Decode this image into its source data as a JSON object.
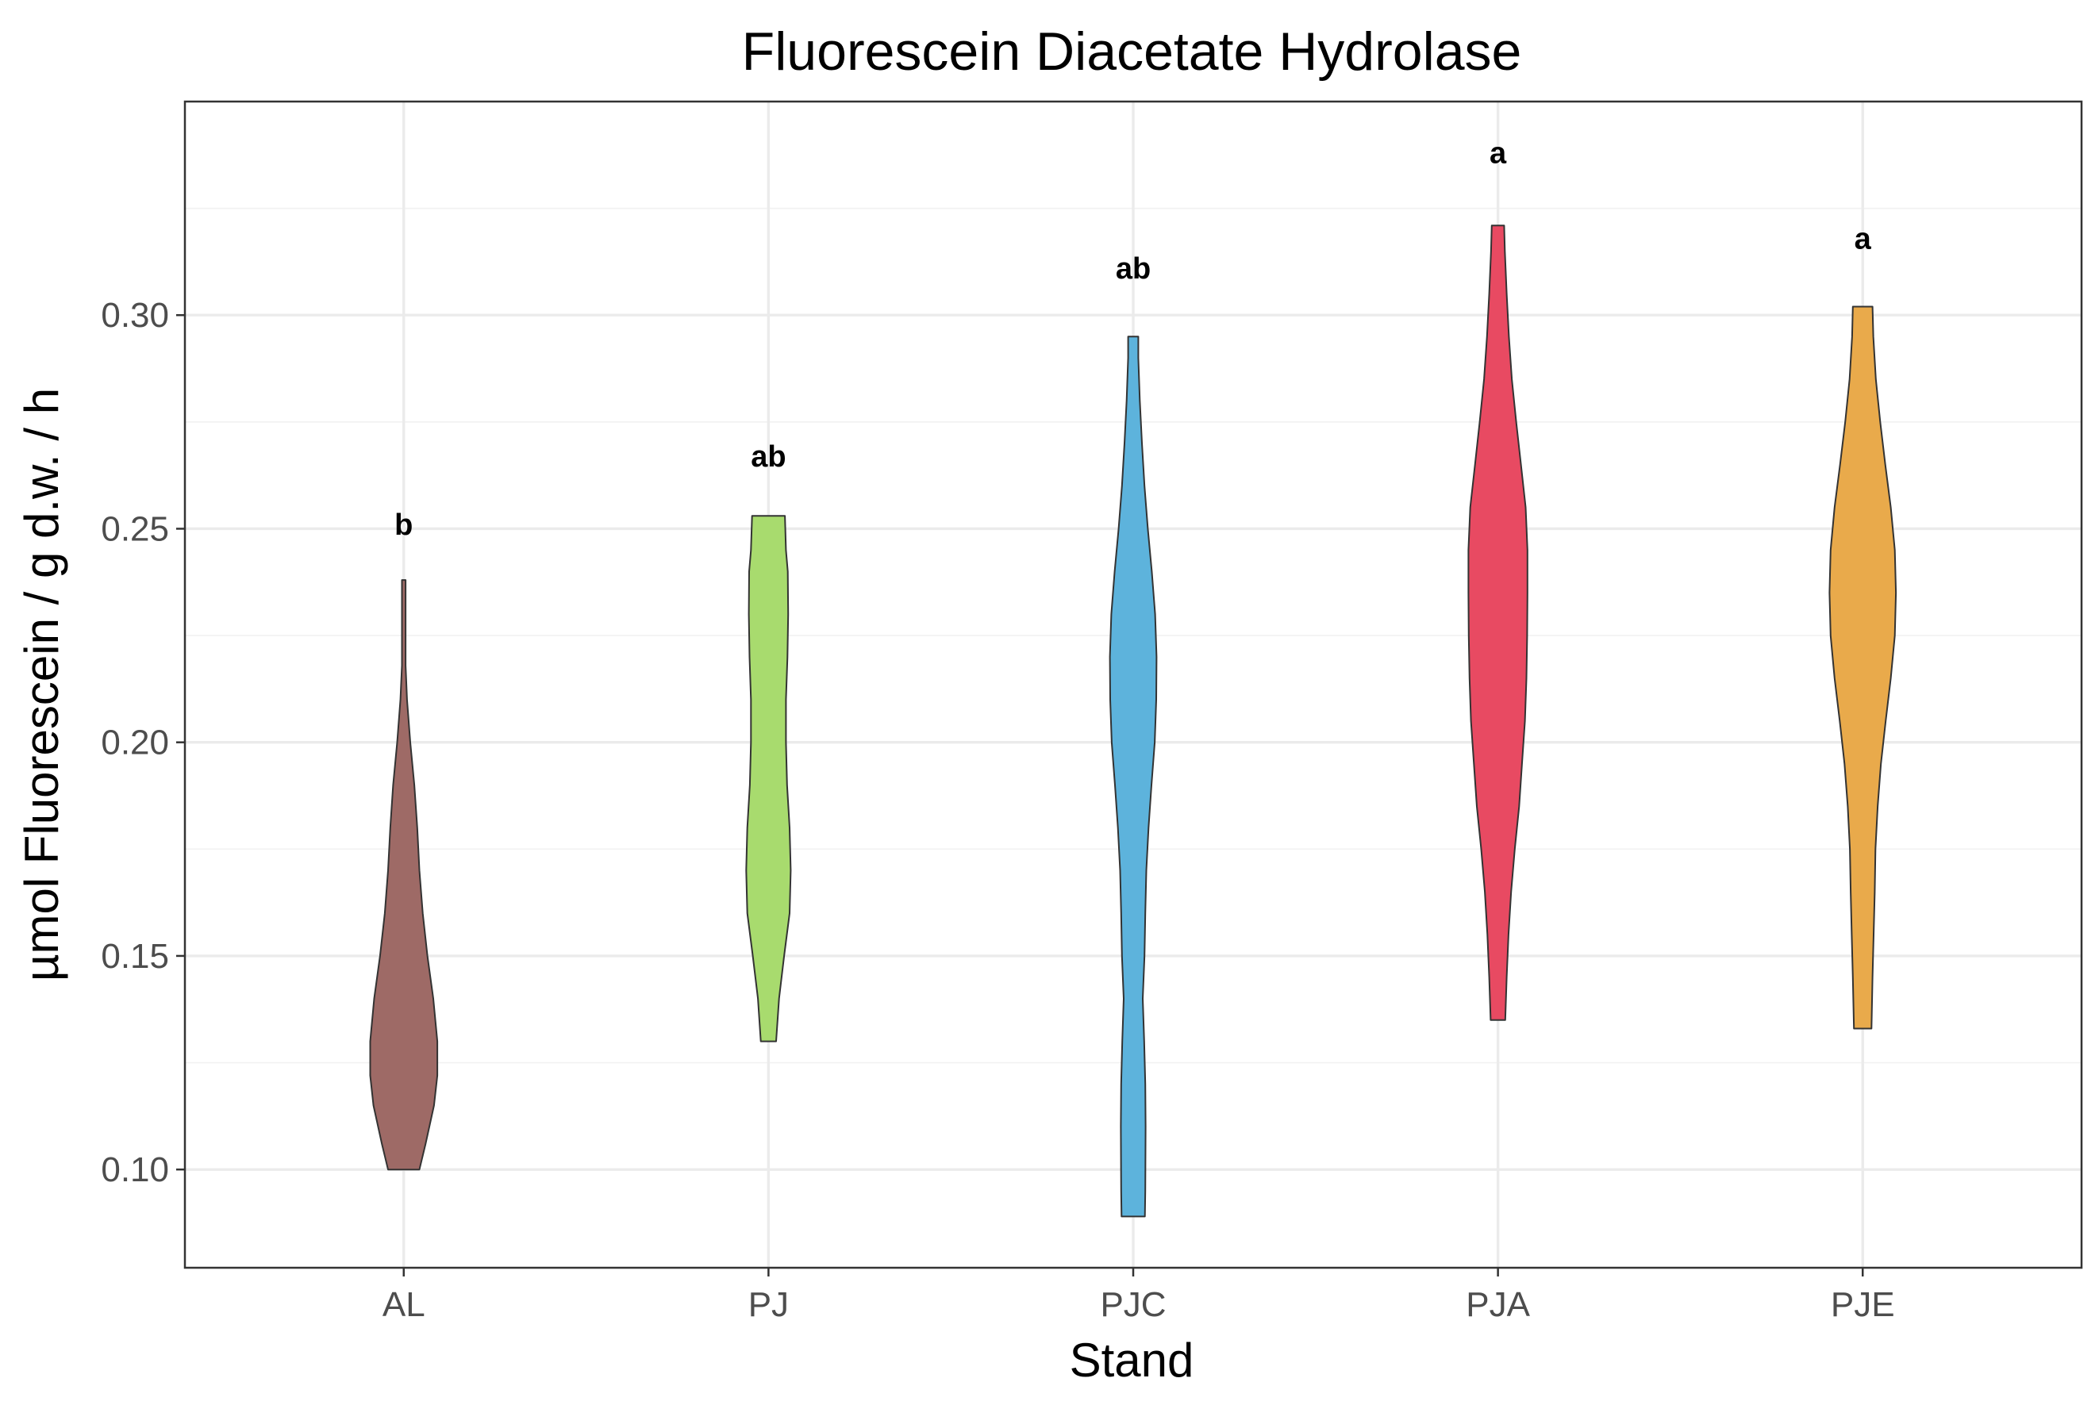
{
  "chart_data": {
    "type": "violin",
    "title": "Fluorescein Diacetate Hydrolase",
    "xlabel": "Stand",
    "ylabel": "µmol Fluorescein / g d.w. / h",
    "ylim": [
      0.077,
      0.35
    ],
    "y_ticks": [
      {
        "value": 0.1,
        "label": "0.10"
      },
      {
        "value": 0.15,
        "label": "0.15"
      },
      {
        "value": 0.2,
        "label": "0.20"
      },
      {
        "value": 0.25,
        "label": "0.25"
      },
      {
        "value": 0.3,
        "label": "0.30"
      }
    ],
    "y_minor_ticks": [
      0.125,
      0.175,
      0.225,
      0.275,
      0.325
    ],
    "grid": true,
    "legend": "none",
    "categories": [
      "AL",
      "PJ",
      "PJC",
      "PJA",
      "PJE"
    ],
    "violins": [
      {
        "category": "AL",
        "color": "#9E6A66",
        "min": 0.1,
        "max": 0.238,
        "significance": "b",
        "significance_y": 0.251,
        "profile": [
          [
            0.1,
            0.043
          ],
          [
            0.106,
            0.06
          ],
          [
            0.115,
            0.083
          ],
          [
            0.122,
            0.092
          ],
          [
            0.13,
            0.092
          ],
          [
            0.14,
            0.081
          ],
          [
            0.15,
            0.065
          ],
          [
            0.16,
            0.052
          ],
          [
            0.17,
            0.043
          ],
          [
            0.18,
            0.037
          ],
          [
            0.19,
            0.029
          ],
          [
            0.2,
            0.018
          ],
          [
            0.21,
            0.009
          ],
          [
            0.218,
            0.005
          ],
          [
            0.226,
            0.005
          ],
          [
            0.238,
            0.005
          ]
        ]
      },
      {
        "category": "PJ",
        "color": "#A8DB6E",
        "min": 0.13,
        "max": 0.253,
        "significance": "ab",
        "significance_y": 0.267,
        "profile": [
          [
            0.13,
            0.021
          ],
          [
            0.14,
            0.029
          ],
          [
            0.15,
            0.043
          ],
          [
            0.16,
            0.058
          ],
          [
            0.17,
            0.061
          ],
          [
            0.18,
            0.058
          ],
          [
            0.19,
            0.051
          ],
          [
            0.2,
            0.048
          ],
          [
            0.21,
            0.048
          ],
          [
            0.22,
            0.052
          ],
          [
            0.23,
            0.054
          ],
          [
            0.24,
            0.053
          ],
          [
            0.245,
            0.048
          ],
          [
            0.253,
            0.045
          ]
        ]
      },
      {
        "category": "PJC",
        "color": "#5DB3DC",
        "min": 0.089,
        "max": 0.295,
        "significance": "ab",
        "significance_y": 0.311,
        "profile": [
          [
            0.089,
            0.032
          ],
          [
            0.095,
            0.033
          ],
          [
            0.11,
            0.034
          ],
          [
            0.12,
            0.033
          ],
          [
            0.13,
            0.03
          ],
          [
            0.14,
            0.026
          ],
          [
            0.15,
            0.031
          ],
          [
            0.16,
            0.033
          ],
          [
            0.17,
            0.036
          ],
          [
            0.18,
            0.042
          ],
          [
            0.19,
            0.05
          ],
          [
            0.2,
            0.059
          ],
          [
            0.21,
            0.063
          ],
          [
            0.22,
            0.064
          ],
          [
            0.23,
            0.06
          ],
          [
            0.24,
            0.051
          ],
          [
            0.25,
            0.04
          ],
          [
            0.26,
            0.031
          ],
          [
            0.27,
            0.024
          ],
          [
            0.28,
            0.018
          ],
          [
            0.29,
            0.014
          ],
          [
            0.295,
            0.014
          ]
        ]
      },
      {
        "category": "PJA",
        "color": "#E84A62",
        "min": 0.135,
        "max": 0.321,
        "significance": "a",
        "significance_y": 0.338,
        "profile": [
          [
            0.135,
            0.02
          ],
          [
            0.145,
            0.024
          ],
          [
            0.155,
            0.029
          ],
          [
            0.165,
            0.036
          ],
          [
            0.175,
            0.046
          ],
          [
            0.185,
            0.058
          ],
          [
            0.195,
            0.066
          ],
          [
            0.205,
            0.074
          ],
          [
            0.215,
            0.078
          ],
          [
            0.225,
            0.08
          ],
          [
            0.235,
            0.081
          ],
          [
            0.245,
            0.081
          ],
          [
            0.255,
            0.076
          ],
          [
            0.265,
            0.063
          ],
          [
            0.275,
            0.05
          ],
          [
            0.285,
            0.038
          ],
          [
            0.295,
            0.03
          ],
          [
            0.305,
            0.024
          ],
          [
            0.315,
            0.019
          ],
          [
            0.321,
            0.017
          ]
        ]
      },
      {
        "category": "PJE",
        "color": "#E9AA4B",
        "min": 0.133,
        "max": 0.302,
        "significance": "a",
        "significance_y": 0.318,
        "profile": [
          [
            0.133,
            0.024
          ],
          [
            0.145,
            0.027
          ],
          [
            0.155,
            0.03
          ],
          [
            0.165,
            0.033
          ],
          [
            0.175,
            0.035
          ],
          [
            0.185,
            0.041
          ],
          [
            0.195,
            0.05
          ],
          [
            0.205,
            0.063
          ],
          [
            0.215,
            0.077
          ],
          [
            0.225,
            0.088
          ],
          [
            0.235,
            0.091
          ],
          [
            0.245,
            0.088
          ],
          [
            0.255,
            0.077
          ],
          [
            0.265,
            0.062
          ],
          [
            0.275,
            0.048
          ],
          [
            0.285,
            0.036
          ],
          [
            0.295,
            0.029
          ],
          [
            0.302,
            0.027
          ]
        ]
      }
    ]
  }
}
